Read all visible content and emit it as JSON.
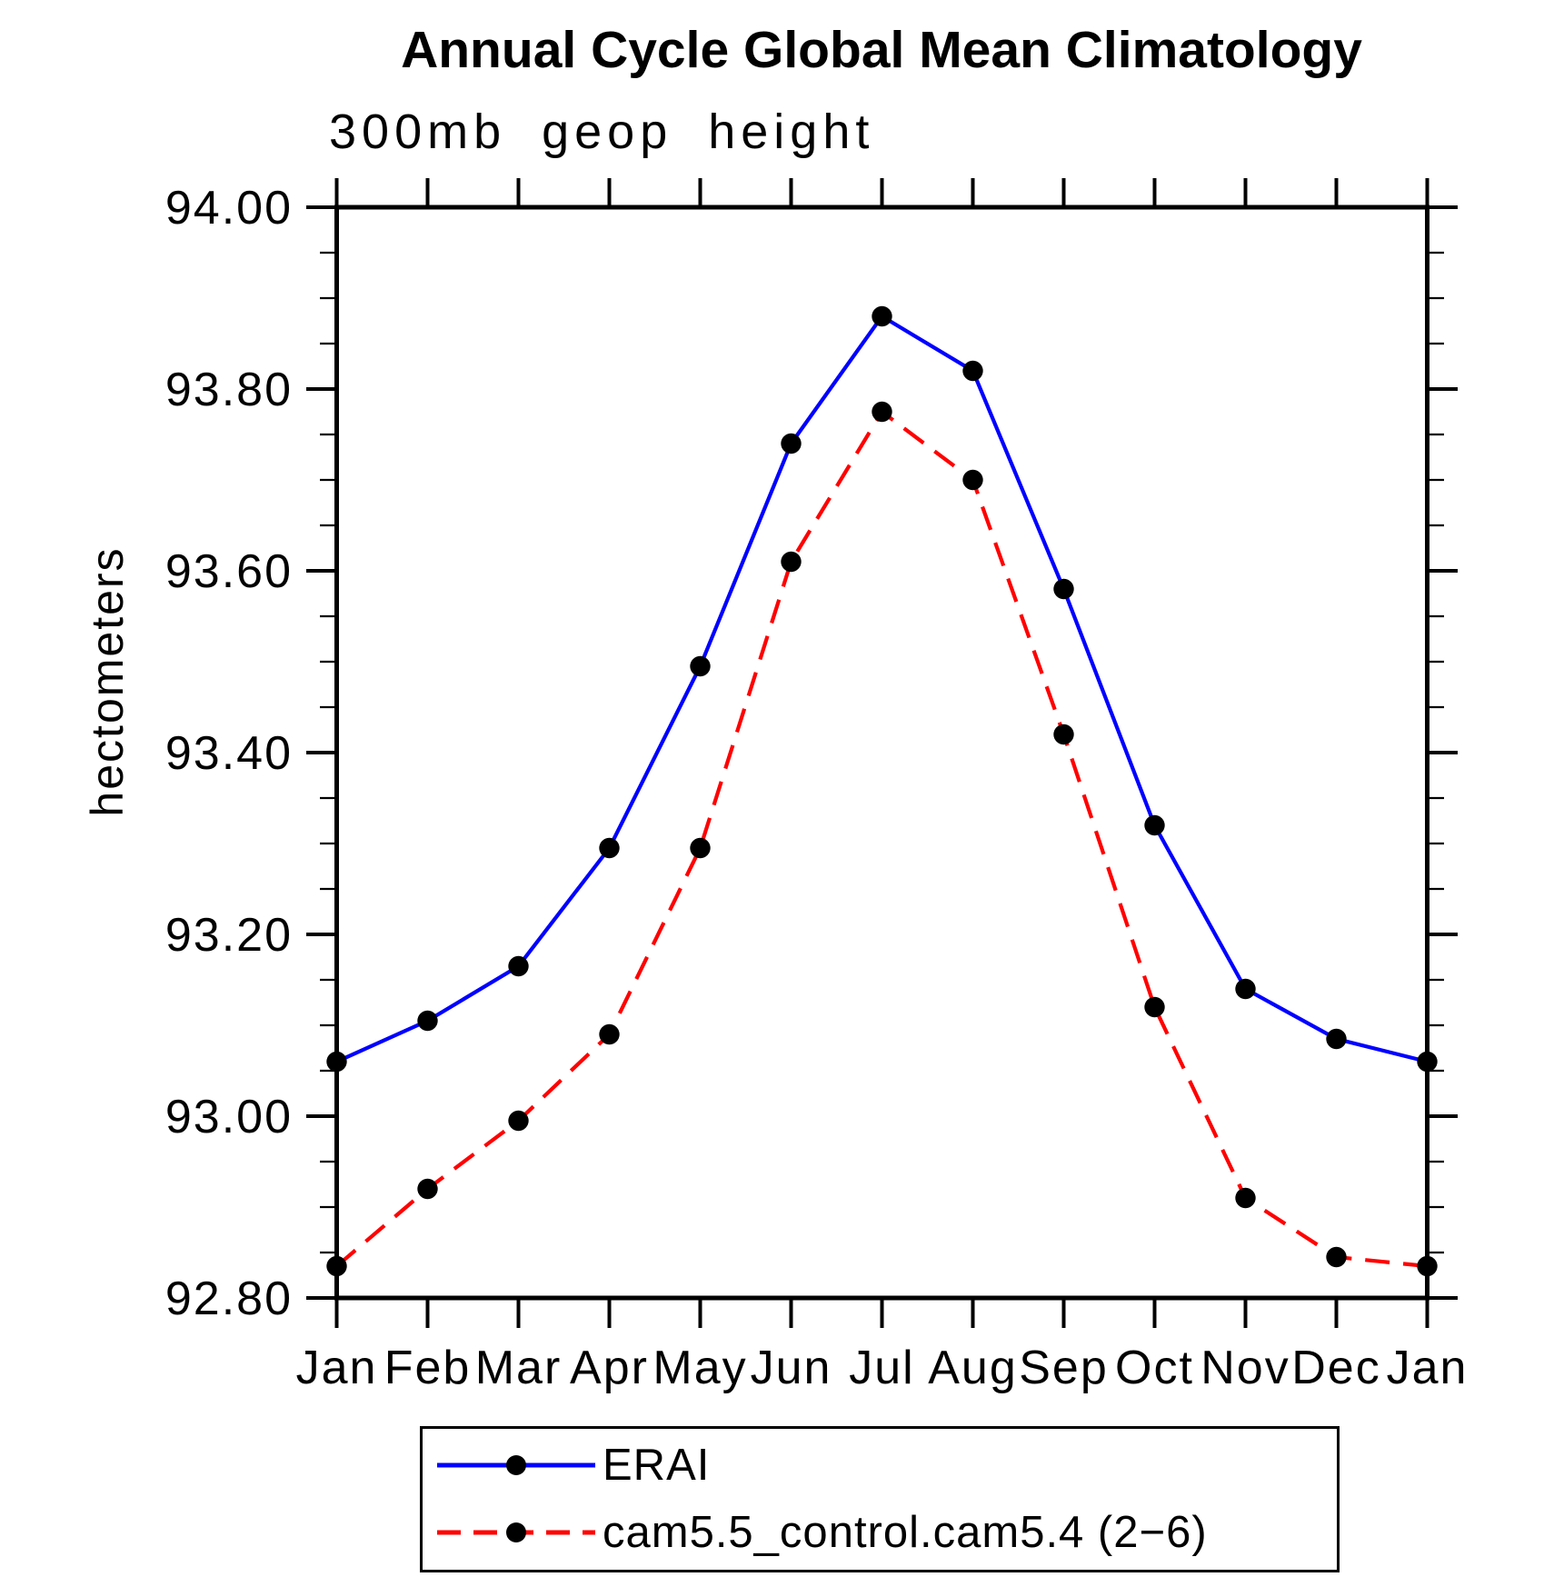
{
  "chart_data": {
    "type": "line",
    "title": "Annual Cycle Global Mean Climatology",
    "subtitle": "300mb geop height",
    "ylabel": "hectometers",
    "categories": [
      "Jan",
      "Feb",
      "Mar",
      "Apr",
      "May",
      "Jun",
      "Jul",
      "Aug",
      "Sep",
      "Oct",
      "Nov",
      "Dec",
      "Jan"
    ],
    "series": [
      {
        "name": "ERAI",
        "color": "#0000ff",
        "line_style": "solid",
        "marker": "filled-circle",
        "marker_color": "#000000",
        "values": [
          93.06,
          93.105,
          93.165,
          93.295,
          93.495,
          93.74,
          93.88,
          93.82,
          93.58,
          93.32,
          93.14,
          93.085,
          93.06
        ]
      },
      {
        "name": "cam5.5_control.cam5.4 (2−6)",
        "color": "#ff0000",
        "line_style": "dashed",
        "marker": "filled-circle",
        "marker_color": "#000000",
        "values": [
          92.835,
          92.92,
          92.995,
          93.09,
          93.295,
          93.61,
          93.775,
          93.7,
          93.42,
          93.12,
          92.91,
          92.845,
          92.835
        ]
      }
    ],
    "ylim": [
      92.8,
      94.0
    ],
    "ytick_step": 0.2,
    "yminor_step": 0.05,
    "yticks": [
      "94.00",
      "93.80",
      "93.60",
      "93.40",
      "93.20",
      "93.00",
      "92.80"
    ],
    "xlabel": "",
    "grid": false,
    "legend_position": "bottom",
    "frame_color": "#000000"
  }
}
